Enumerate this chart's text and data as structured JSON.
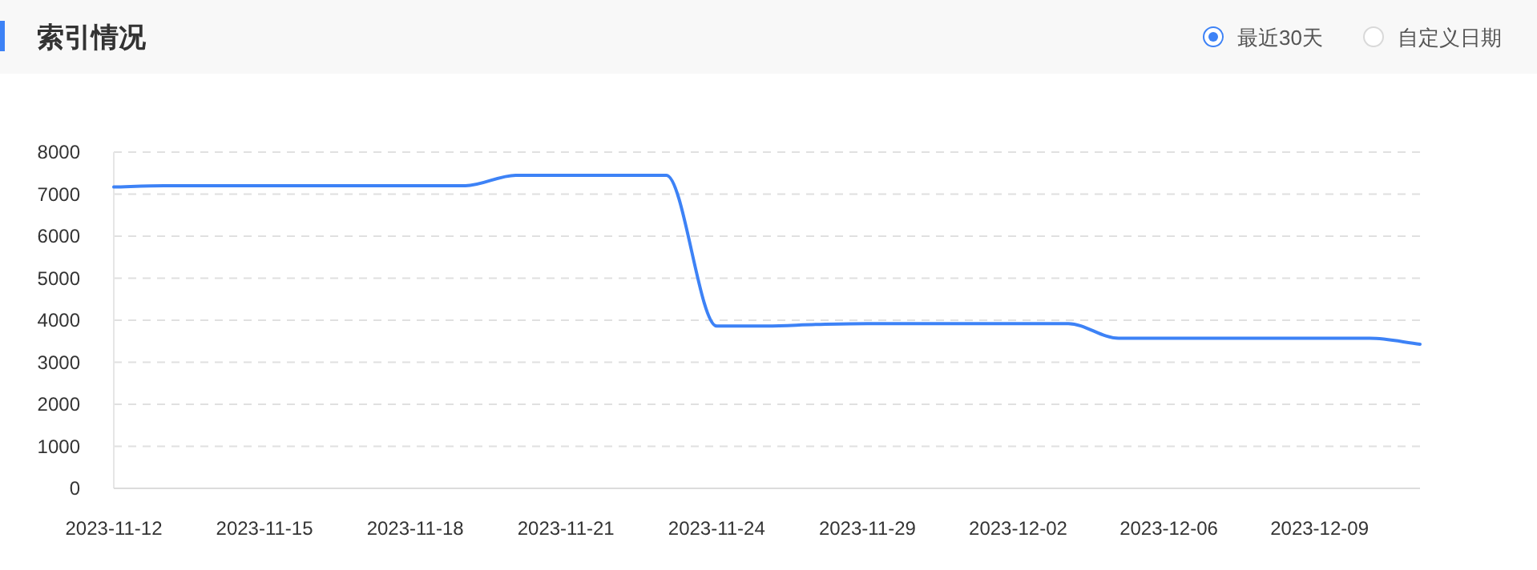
{
  "chart_data": {
    "type": "line",
    "title": "索引情况",
    "annotations": [
      "最近30天",
      "自定义日期"
    ],
    "categories": [
      "2023-11-12",
      null,
      null,
      "2023-11-15",
      null,
      null,
      "2023-11-18",
      null,
      null,
      "2023-11-21",
      null,
      null,
      "2023-11-24",
      null,
      null,
      "2023-11-29",
      null,
      null,
      "2023-12-02",
      null,
      null,
      "2023-12-06",
      null,
      null,
      "2023-12-09",
      null,
      null
    ],
    "series": [
      {
        "color": "#3d82f6",
        "values": [
          7170,
          7200,
          7200,
          7200,
          7200,
          7200,
          7200,
          7200,
          7450,
          7450,
          7450,
          7450,
          3860,
          3860,
          3900,
          3920,
          3920,
          3920,
          3920,
          3920,
          3570,
          3570,
          3570,
          3570,
          3570,
          3570,
          3430
        ]
      }
    ],
    "ylim": [
      0,
      8000
    ],
    "yticks": [
      0,
      1000,
      2000,
      3000,
      4000,
      5000,
      6000,
      7000,
      8000
    ],
    "grid": "y",
    "marker": "none",
    "line_style": "solid"
  }
}
